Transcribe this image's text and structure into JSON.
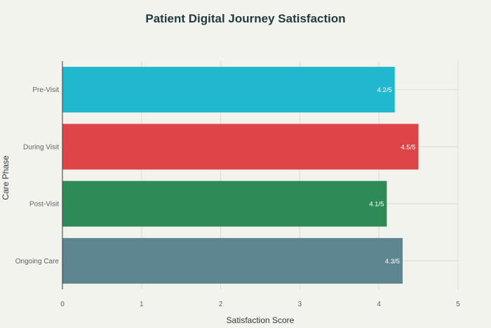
{
  "chart_data": {
    "type": "bar",
    "orientation": "horizontal",
    "title": "Patient Digital Journey Satisfaction",
    "xlabel": "Satisfaction Score",
    "ylabel": "Care Phase",
    "xlim": [
      0,
      5
    ],
    "x_ticks": [
      0,
      1,
      2,
      3,
      4,
      5
    ],
    "grid": true,
    "categories": [
      "Pre-Visit",
      "During Visit",
      "Post-Visit",
      "Ongoing Care"
    ],
    "values": [
      4.2,
      4.5,
      4.1,
      4.3
    ],
    "data_labels": [
      "4.2/5",
      "4.5/5",
      "4.1/5",
      "4.3/5"
    ],
    "colors": [
      "#21b8cf",
      "#dd4548",
      "#2e8b57",
      "#5e8690"
    ]
  }
}
